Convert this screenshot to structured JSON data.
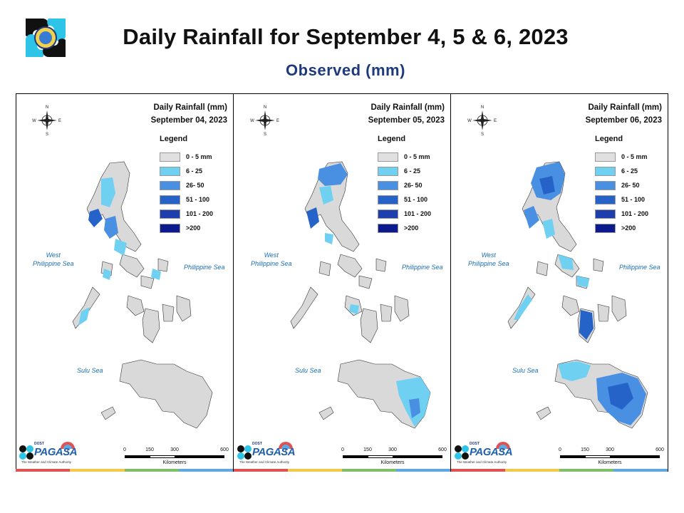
{
  "header": {
    "title": "Daily Rainfall for September 4, 5 & 6, 2023",
    "subtitle": "Observed (mm)"
  },
  "panels": [
    {
      "title_line1": "Daily Rainfall (mm)",
      "title_line2": "September 04, 2023"
    },
    {
      "title_line1": "Daily Rainfall (mm)",
      "title_line2": "September 05, 2023"
    },
    {
      "title_line1": "Daily Rainfall (mm)",
      "title_line2": "September 06, 2023"
    }
  ],
  "legend": {
    "title": "Legend",
    "items": [
      {
        "label": "0 - 5 mm",
        "color": "#e0e0e0"
      },
      {
        "label": "6 - 25",
        "color": "#6fd0f2"
      },
      {
        "label": "26- 50",
        "color": "#4a90e2"
      },
      {
        "label": "51 - 100",
        "color": "#2563c9"
      },
      {
        "label": "101 - 200",
        "color": "#1d3fae"
      },
      {
        "label": ">200",
        "color": "#0b1a8c"
      }
    ]
  },
  "sea_labels": {
    "west_line1": "West",
    "west_line2": "Philippine Sea",
    "philippine": "Philippine Sea",
    "sulu": "Sulu Sea"
  },
  "compass": {
    "n": "N",
    "e": "E",
    "s": "S",
    "w": "W"
  },
  "scale": {
    "ticks": [
      "0",
      "150",
      "300",
      "600"
    ],
    "unit": "Kilometers"
  },
  "branding": {
    "small_text": "DOST",
    "logo_text": "PAGASA",
    "tagline": "The Weather and Climate Authority"
  },
  "colors": {
    "title": "#111111",
    "subtitle": "#1f3a7a",
    "land": "#d9d9d9",
    "sea_label": "#1a6fb3",
    "stripe": [
      "#e05252",
      "#f2c94c",
      "#7fbf6a",
      "#5fa8e0"
    ]
  }
}
